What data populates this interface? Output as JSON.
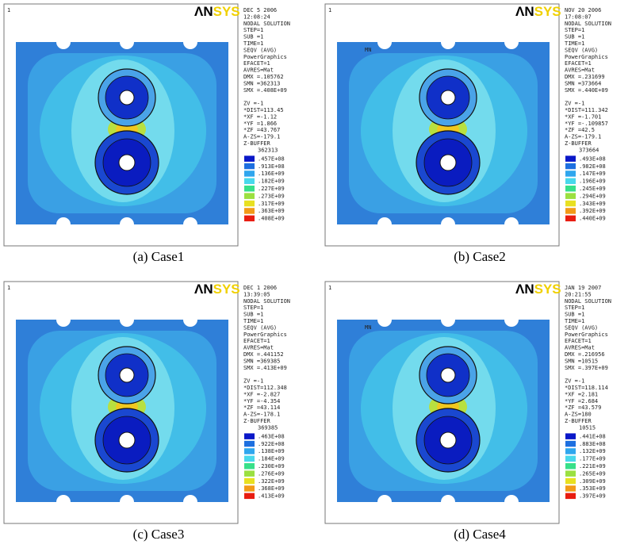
{
  "legend_colors": [
    "#0a18c8",
    "#1d6fe0",
    "#2fa6ee",
    "#48d8ec",
    "#37e08a",
    "#9be040",
    "#e8e020",
    "#f29a18",
    "#e81c10"
  ],
  "panels": [
    {
      "caption": "(a) Case1",
      "window": "1",
      "logo_dark": "ΛN",
      "logo_light": "SYS",
      "info": [
        "DEC  5 2006",
        "12:08:24",
        "NODAL SOLUTION",
        "STEP=1",
        "SUB =1",
        "TIME=1",
        "SEQV      (AVG)",
        "PowerGraphics",
        "EFACET=1",
        "AVRES=Mat",
        "DMX =.105762",
        "SMN =362313",
        "SMX =.408E+09"
      ],
      "view": [
        "ZV   =-1",
        "*DIST=113.45",
        "*XF  =-1.12",
        "*YF  =1.866",
        "*ZF  =43.767",
        "A-ZS=-179.1",
        "Z-BUFFER"
      ],
      "legend_title": "362313",
      "legend": [
        ".457E+08",
        ".913E+08",
        ".136E+09",
        ".182E+09",
        ".227E+09",
        ".273E+09",
        ".317E+09",
        ".363E+09",
        ".408E+09"
      ]
    },
    {
      "caption": "(b) Case2",
      "window": "1",
      "logo_dark": "ΛN",
      "logo_light": "SYS",
      "mn": "MN",
      "info": [
        "NOV 20 2006",
        "17:08:07",
        "NODAL SOLUTION",
        "STEP=1",
        "SUB =1",
        "TIME=1",
        "SEQV      (AVG)",
        "PowerGraphics",
        "EFACET=1",
        "AVRES=Mat",
        "DMX =.231699",
        "SMN =373664",
        "SMX =.440E+09"
      ],
      "view": [
        "ZV   =-1",
        "*DIST=111.342",
        "*XF  =-1.701",
        "*YF  =-.109857",
        "*ZF  =42.5",
        "A-ZS=-179.1",
        "Z-BUFFER"
      ],
      "legend_title": "373664",
      "legend": [
        ".493E+08",
        ".982E+08",
        ".147E+09",
        ".196E+09",
        ".245E+09",
        ".294E+09",
        ".343E+09",
        ".392E+09",
        ".440E+09"
      ]
    },
    {
      "caption": "(c) Case3",
      "window": "1",
      "logo_dark": "ΛN",
      "logo_light": "SYS",
      "info": [
        "DEC  1 2006",
        "13:39:05",
        "NODAL SOLUTION",
        "STEP=1",
        "SUB =1",
        "TIME=1",
        "SEQV      (AVG)",
        "PowerGraphics",
        "EFACET=1",
        "AVRES=Mat",
        "DMX =.441152",
        "SMN =369385",
        "SMX =.413E+09"
      ],
      "view": [
        "ZV   =-1",
        "*DIST=112.348",
        "*XF  =-2.827",
        "*YF  =-4.354",
        "*ZF  =43.114",
        "A-ZS=-178.1",
        "Z-BUFFER"
      ],
      "legend_title": "369385",
      "legend": [
        ".463E+08",
        ".922E+08",
        ".138E+09",
        ".184E+09",
        ".230E+09",
        ".276E+09",
        ".322E+09",
        ".368E+09",
        ".413E+09"
      ]
    },
    {
      "caption": "(d) Case4",
      "window": "1",
      "logo_dark": "ΛN",
      "logo_light": "SYS",
      "mn": "MN",
      "info": [
        "JAN 19 2007",
        "20:21:55",
        "NODAL SOLUTION",
        "STEP=1",
        "SUB =1",
        "TIME=1",
        "SEQV      (AVG)",
        "PowerGraphics",
        "EFACET=1",
        "AVRES=Mat",
        "DMX =.216956",
        "SMN =10515",
        "SMX =.397E+09"
      ],
      "view": [
        "ZV   =-1",
        "*DIST=118.114",
        "*XF  =2.181",
        "*YF  =2.684",
        "*ZF  =43.579",
        "A-ZS=180",
        "Z-BUFFER"
      ],
      "legend_title": "10515",
      "legend": [
        ".441E+08",
        ".883E+08",
        ".132E+09",
        ".177E+09",
        ".221E+09",
        ".265E+09",
        ".309E+09",
        ".353E+09",
        ".397E+09"
      ]
    }
  ]
}
